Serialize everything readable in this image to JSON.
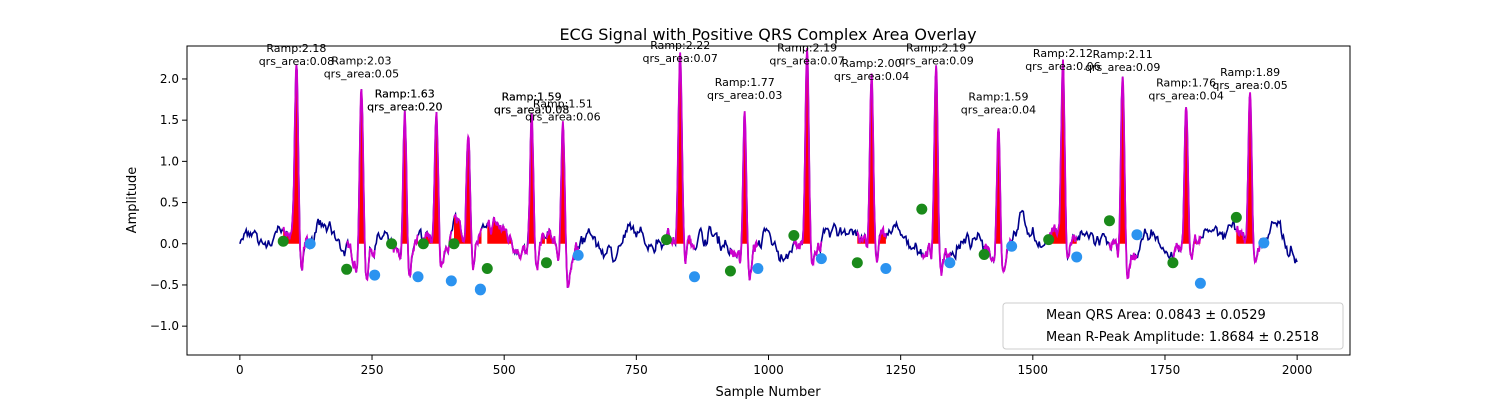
{
  "chart_data": {
    "type": "line",
    "title": "ECG Signal with Positive QRS Complex Area Overlay",
    "xlabel": "Sample Number",
    "ylabel": "Amplitude",
    "xlim": [
      -100,
      2100
    ],
    "ylim": [
      -1.35,
      2.4
    ],
    "x_ticks": [
      0,
      250,
      500,
      750,
      1000,
      1250,
      1500,
      1750,
      2000
    ],
    "x_tick_labels": [
      "0",
      "250",
      "500",
      "750",
      "1000",
      "1250",
      "1500",
      "1750",
      "2000"
    ],
    "y_ticks": [
      -1.0,
      -0.5,
      0.0,
      0.5,
      1.0,
      1.5,
      2.0
    ],
    "y_tick_labels": [
      "−1.0",
      "−0.5",
      "0.0",
      "0.5",
      "1.0",
      "1.5",
      "2.0"
    ],
    "grid": false,
    "colors": {
      "signal": "#00008b",
      "qrs_segment": "#cc00cc",
      "area_fill": "#ff0000",
      "q_marker": "#1a8a1a",
      "s_marker": "#2b93f0"
    },
    "beats": [
      {
        "r_x": 107,
        "r_amp": 2.18,
        "qrs_area": "0.08",
        "q": [
          82,
          0.03
        ],
        "s": [
          133,
          0.0
        ],
        "label": [
          "Ramp:2.18",
          "qrs_area:0.08"
        ]
      },
      {
        "r_x": 230,
        "r_amp": 2.03,
        "qrs_area": "0.05",
        "q": [
          202,
          -0.31
        ],
        "s": [
          255,
          -0.38
        ],
        "label": [
          "Ramp:2.03",
          "qrs_area:0.05"
        ]
      },
      {
        "r_x": 312,
        "r_amp": 1.63,
        "qrs_area": "0.20",
        "q": [
          287,
          0.0
        ],
        "s": [
          337,
          -0.4
        ],
        "label": [
          "Ramp:1.63",
          "qrs_area:0.20"
        ]
      },
      {
        "r_x": 372,
        "r_amp": 1.5,
        "qrs_area": null,
        "q": [
          347,
          0.0
        ],
        "s": [
          400,
          -0.45
        ],
        "label": null
      },
      {
        "r_x": 432,
        "r_amp": 1.2,
        "qrs_area": null,
        "q": [
          405,
          0.0
        ],
        "s": [
          455,
          -0.55
        ],
        "label": null
      },
      {
        "r_x": 552,
        "r_amp": 1.59,
        "qrs_area": "0.08",
        "q": [
          468,
          -0.3
        ],
        "s": [
          455,
          -0.56
        ],
        "label": [
          "Ramp:1.59",
          "qrs_area:0.08"
        ]
      },
      {
        "r_x": 611,
        "r_amp": 1.51,
        "qrs_area": "0.06",
        "q": [
          580,
          -0.23
        ],
        "s": [
          640,
          -0.14
        ],
        "label": [
          "Ramp:1.51",
          "qrs_area:0.06"
        ]
      },
      {
        "r_x": 833,
        "r_amp": 2.22,
        "qrs_area": "0.07",
        "q": [
          807,
          0.05
        ],
        "s": [
          860,
          -0.4
        ],
        "label": [
          "Ramp:2.22",
          "qrs_area:0.07"
        ]
      },
      {
        "r_x": 955,
        "r_amp": 1.77,
        "qrs_area": "0.03",
        "q": [
          928,
          -0.33
        ],
        "s": [
          980,
          -0.3
        ],
        "label": [
          "Ramp:1.77",
          "qrs_area:0.03"
        ]
      },
      {
        "r_x": 1073,
        "r_amp": 2.19,
        "qrs_area": "0.07",
        "q": [
          1048,
          0.1
        ],
        "s": [
          1100,
          -0.18
        ],
        "label": [
          "Ramp:2.19",
          "qrs_area:0.07"
        ]
      },
      {
        "r_x": 1195,
        "r_amp": 2.0,
        "qrs_area": "0.04",
        "q": [
          1168,
          -0.23
        ],
        "s": [
          1222,
          -0.3
        ],
        "label": [
          "Ramp:2.00",
          "qrs_area:0.04"
        ]
      },
      {
        "r_x": 1317,
        "r_amp": 2.19,
        "qrs_area": "0.09",
        "q": [
          1290,
          0.42
        ],
        "s": [
          1343,
          -0.23
        ],
        "label": [
          "Ramp:2.19",
          "qrs_area:0.09"
        ]
      },
      {
        "r_x": 1435,
        "r_amp": 1.59,
        "qrs_area": "0.04",
        "q": [
          1408,
          -0.13
        ],
        "s": [
          1460,
          -0.03
        ],
        "label": [
          "Ramp:1.59",
          "qrs_area:0.04"
        ]
      },
      {
        "r_x": 1557,
        "r_amp": 2.12,
        "qrs_area": "0.06",
        "q": [
          1530,
          0.05
        ],
        "s": [
          1583,
          -0.16
        ],
        "label": [
          "Ramp:2.12",
          "qrs_area:0.06"
        ]
      },
      {
        "r_x": 1670,
        "r_amp": 2.11,
        "qrs_area": "0.09",
        "q": [
          1645,
          0.28
        ],
        "s": [
          1697,
          0.11
        ],
        "label": [
          "Ramp:2.11",
          "qrs_area:0.09"
        ]
      },
      {
        "r_x": 1790,
        "r_amp": 1.76,
        "qrs_area": "0.04",
        "q": [
          1765,
          -0.23
        ],
        "s": [
          1817,
          -0.48
        ],
        "label": [
          "Ramp:1.76",
          "qrs_area:0.04"
        ]
      },
      {
        "r_x": 1911,
        "r_amp": 1.89,
        "qrs_area": "0.05",
        "q": [
          1885,
          0.32
        ],
        "s": [
          1937,
          0.01
        ],
        "label": [
          "Ramp:1.89",
          "qrs_area:0.05"
        ]
      }
    ],
    "duplicate_labels": [
      {
        "r_x": 312,
        "r_amp": 1.63,
        "label": [
          "Ramp:1.63",
          "qrs_area:0.20"
        ]
      },
      {
        "r_x": 552,
        "r_amp": 1.59,
        "label": [
          "Ramp:1.59",
          "qrs_area:0.08"
        ]
      }
    ],
    "legend": {
      "placement": "lower-right",
      "entries": [
        "Mean QRS Area: 0.0843 ± 0.0529",
        "Mean R-Peak Amplitude: 1.8684 ± 0.2518"
      ]
    }
  }
}
